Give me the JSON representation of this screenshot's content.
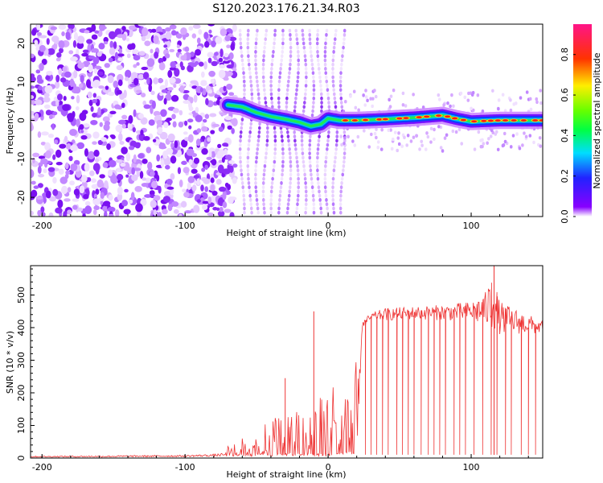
{
  "figure_title": "S120.2023.176.21.34.R03",
  "chart_data": [
    {
      "type": "heatmap",
      "xlabel": "Height of straight line (km)",
      "ylabel": "Frequency (Hz)",
      "xlim": [
        -208,
        150
      ],
      "ylim": [
        -25,
        25
      ],
      "xticks": [
        -200,
        -100,
        0,
        100
      ],
      "yticks": [
        -20,
        -10,
        0,
        10,
        20
      ],
      "grid": false,
      "colorbar": {
        "label": "Normalized spectral amplitude",
        "range": [
          0.0,
          0.95
        ],
        "ticks": [
          0.0,
          0.2,
          0.4,
          0.6,
          0.8
        ],
        "colormap": "rainbow (violet→blue→cyan→green→yellow→red→magenta)"
      },
      "regions": [
        {
          "x_range": [
            -208,
            -70
          ],
          "description_value": "scattered noise",
          "max_amplitude": 0.15
        },
        {
          "x_range": [
            -70,
            8
          ],
          "description_value": "transition",
          "max_amplitude": 0.3
        },
        {
          "x_range": [
            8,
            150
          ],
          "centered_frequency_hz": 0,
          "max_amplitude": 0.95
        }
      ],
      "peak_line": {
        "x": [
          -70,
          -60,
          -50,
          -40,
          -30,
          -20,
          -12,
          -5,
          0,
          8,
          20,
          40,
          60,
          80,
          90,
          100,
          120,
          150
        ],
        "y": [
          4,
          3.5,
          2,
          1,
          0.3,
          -0.5,
          -1.5,
          -1,
          0.5,
          0,
          0,
          0.3,
          0.7,
          1.3,
          0.4,
          -0.3,
          0,
          0
        ]
      }
    },
    {
      "type": "line",
      "xlabel": "Height of straight line (km)",
      "ylabel": "SNR (10 * v/v)",
      "xlim": [
        -208,
        150
      ],
      "ylim": [
        0,
        590
      ],
      "xticks": [
        -200,
        -100,
        0,
        100
      ],
      "yticks": [
        0,
        100,
        200,
        300,
        400,
        500
      ],
      "grid": false,
      "series": [
        {
          "color": "#ee3333",
          "baseline": {
            "x": [
              -208,
              -150,
              -100,
              -80,
              -72
            ],
            "y": [
              4,
              5,
              6,
              8,
              10
            ]
          },
          "envelope_upper": {
            "x": [
              -72,
              -60,
              -50,
              -40,
              -30,
              -20,
              -10,
              0,
              10,
              20,
              22,
              24,
              30,
              40,
              60,
              80,
              100,
              110,
              115,
              120,
              130,
              140,
              150
            ],
            "y": [
              30,
              70,
              90,
              120,
              150,
              170,
              200,
              230,
              260,
              300,
              330,
              420,
              445,
              460,
              465,
              470,
              480,
              510,
              570,
              480,
              460,
              440,
              420
            ]
          },
          "envelope_lower": {
            "x": [
              -72,
              -60,
              -40,
              -20,
              0,
              20,
              24,
              30,
              60,
              100,
              120,
              150
            ],
            "y": [
              5,
              5,
              5,
              5,
              5,
              10,
              400,
              420,
              425,
              420,
              380,
              380
            ]
          },
          "spike_peaks": [
            {
              "x": -10,
              "y": 450
            },
            {
              "x": 116,
              "y": 590
            },
            {
              "x": -30,
              "y": 245
            }
          ],
          "dropout_x": [
            26,
            30,
            34,
            38,
            42,
            48,
            52,
            56,
            60,
            65,
            70,
            74,
            78,
            82,
            88,
            92,
            96,
            102,
            108,
            114,
            118,
            124,
            128,
            135,
            140,
            145
          ],
          "dropout_y": 10
        }
      ]
    }
  ]
}
